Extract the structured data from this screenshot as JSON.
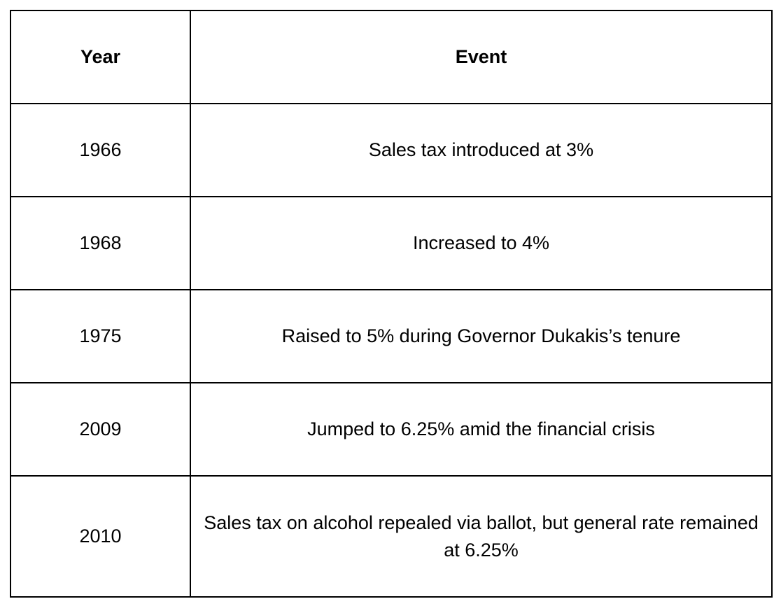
{
  "table": {
    "headers": {
      "year": "Year",
      "event": "Event"
    },
    "rows": [
      {
        "year": "1966",
        "event": "Sales tax introduced at 3%"
      },
      {
        "year": "1968",
        "event": "Increased to 4%"
      },
      {
        "year": "1975",
        "event": "Raised to 5% during Governor Dukakis’s tenure"
      },
      {
        "year": "2009",
        "event": "Jumped to 6.25% amid the financial crisis"
      },
      {
        "year": "2010",
        "event": "Sales tax on alcohol repealed via ballot, but general rate remained at 6.25%"
      }
    ]
  }
}
